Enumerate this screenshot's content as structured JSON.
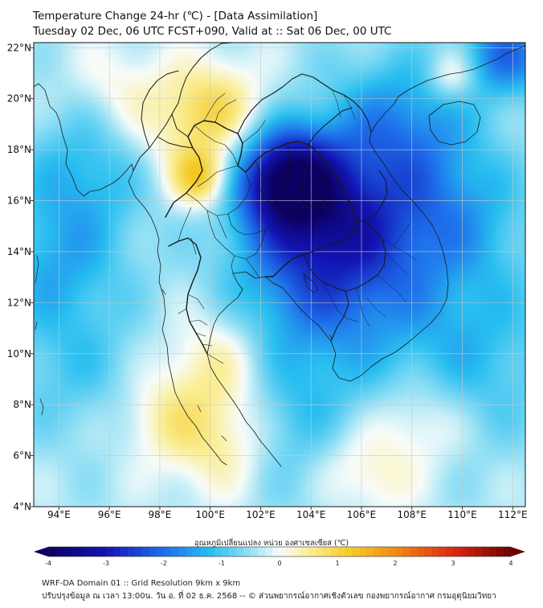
{
  "header": {
    "title_line1": "Temperature Change 24-hr (℃) - [Data Assimilation]",
    "title_line2": "Tuesday 02 Dec, 06 UTC FCST+090, Valid at :: Sat 06 Dec, 00 UTC"
  },
  "map": {
    "lon_labels": [
      "94°E",
      "96°E",
      "98°E",
      "100°E",
      "102°E",
      "104°E",
      "106°E",
      "108°E",
      "110°E",
      "112°E"
    ],
    "lat_labels": [
      "22°N",
      "20°N",
      "18°N",
      "16°N",
      "14°N",
      "12°N",
      "10°N",
      "8°N",
      "6°N",
      "4°N"
    ],
    "lon_range": [
      93,
      112.5
    ],
    "lat_range": [
      4,
      22.2
    ],
    "field_centers": [
      {
        "lon": 103.0,
        "lat": 16.9,
        "value": -2.7,
        "spread": 1.3
      },
      {
        "lon": 104.2,
        "lat": 15.6,
        "value": -1.5,
        "spread": 2.0
      },
      {
        "lon": 106.2,
        "lat": 14.5,
        "value": -1.2,
        "spread": 2.5
      },
      {
        "lon": 107.6,
        "lat": 19.0,
        "value": -1.2,
        "spread": 2.0
      },
      {
        "lon": 104.0,
        "lat": 12.0,
        "value": -1.0,
        "spread": 2.5
      },
      {
        "lon": 111.8,
        "lat": 21.8,
        "value": -1.6,
        "spread": 1.2
      },
      {
        "lon": 95.0,
        "lat": 17.0,
        "value": -0.9,
        "spread": 1.8
      },
      {
        "lon": 94.0,
        "lat": 13.5,
        "value": -0.9,
        "spread": 1.8
      },
      {
        "lon": 94.5,
        "lat": 9.5,
        "value": -0.6,
        "spread": 2.0
      },
      {
        "lon": 110.5,
        "lat": 10.0,
        "value": -0.8,
        "spread": 2.5
      },
      {
        "lon": 103.0,
        "lat": 7.0,
        "value": -0.7,
        "spread": 2.0
      },
      {
        "lon": 110.0,
        "lat": 15.5,
        "value": -0.8,
        "spread": 2.0
      },
      {
        "lon": 99.6,
        "lat": 16.9,
        "value": 1.5,
        "spread": 0.8
      },
      {
        "lon": 100.3,
        "lat": 19.6,
        "value": 1.0,
        "spread": 1.3
      },
      {
        "lon": 98.6,
        "lat": 19.0,
        "value": 0.6,
        "spread": 1.5
      },
      {
        "lon": 100.3,
        "lat": 9.6,
        "value": 0.9,
        "spread": 1.5
      },
      {
        "lon": 100.5,
        "lat": 6.5,
        "value": 1.0,
        "spread": 1.5
      },
      {
        "lon": 98.0,
        "lat": 7.5,
        "value": 0.6,
        "spread": 1.2
      },
      {
        "lon": 105.5,
        "lat": 5.8,
        "value": 0.5,
        "spread": 1.2
      },
      {
        "lon": 108.3,
        "lat": 7.3,
        "value": 0.7,
        "spread": 1.3
      },
      {
        "lon": 106.8,
        "lat": 4.9,
        "value": 0.4,
        "spread": 1.0
      },
      {
        "lon": 109.6,
        "lat": 20.9,
        "value": 0.9,
        "spread": 0.7
      },
      {
        "lon": 96.3,
        "lat": 20.6,
        "value": 0.4,
        "spread": 1.2
      }
    ]
  },
  "colorbar": {
    "title": "อุณหภูมิเปลี่ยนแปลง หน่วย องศาเซลเซียส (℃)",
    "ticks": [
      "-4",
      "-3",
      "-2",
      "-1",
      "0",
      "1",
      "2",
      "3",
      "4"
    ],
    "min": -4,
    "max": 4
  },
  "footer": {
    "line1": "WRF-DA Domain 01 :: Grid Resolution 9km x 9km",
    "line2": "ปรับปรุงข้อมูล ณ เวลา 13:00น. วัน อ. ที่ 02 ธ.ค. 2568 -- © ส่วนพยากรณ์อากาศเชิงตัวเลข กองพยากรณ์อากาศ กรมอุตุนิยมวิทยา"
  },
  "colors": {
    "coast": "#1a1a1a",
    "grid": "#c9c9c9"
  }
}
